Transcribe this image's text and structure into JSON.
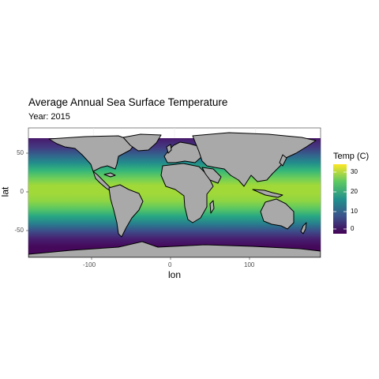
{
  "title": "Average Annual Sea Surface Temperature",
  "subtitle": "Year: 2015",
  "x_axis": {
    "label": "lon",
    "ticks": [
      "-100",
      "0",
      "100"
    ]
  },
  "y_axis": {
    "label": "lat",
    "ticks": [
      "50",
      "0",
      "-50"
    ]
  },
  "legend": {
    "title": "Temp (C)",
    "ticks": [
      "30",
      "20",
      "10",
      "0"
    ]
  },
  "chart_data": {
    "type": "heatmap",
    "title": "Average Annual Sea Surface Temperature",
    "subtitle": "Year: 2015",
    "xlabel": "lon",
    "ylabel": "lat",
    "xlim": [
      -180,
      180
    ],
    "ylim": [
      -84,
      72
    ],
    "x_ticks": [
      -100,
      0,
      100
    ],
    "y_ticks": [
      -50,
      0,
      50
    ],
    "value_range": [
      -2,
      33
    ],
    "colorscale": "viridis",
    "legend_title": "Temp (C)",
    "legend_ticks": [
      0,
      10,
      20,
      30
    ],
    "legend_placement": "right",
    "land_color": "#a9a9a9",
    "land_outline": "#000000",
    "panel_background": "#ffffff",
    "grid": true,
    "latitude_profile": {
      "lat": [
        -84,
        -70,
        -60,
        -50,
        -40,
        -30,
        -20,
        -10,
        0,
        10,
        20,
        30,
        40,
        50,
        60,
        70,
        72
      ],
      "temp": [
        -1.5,
        -1.2,
        1,
        6,
        13,
        19,
        24,
        27,
        28,
        28,
        25,
        21,
        15,
        9,
        4,
        1,
        0
      ]
    }
  }
}
